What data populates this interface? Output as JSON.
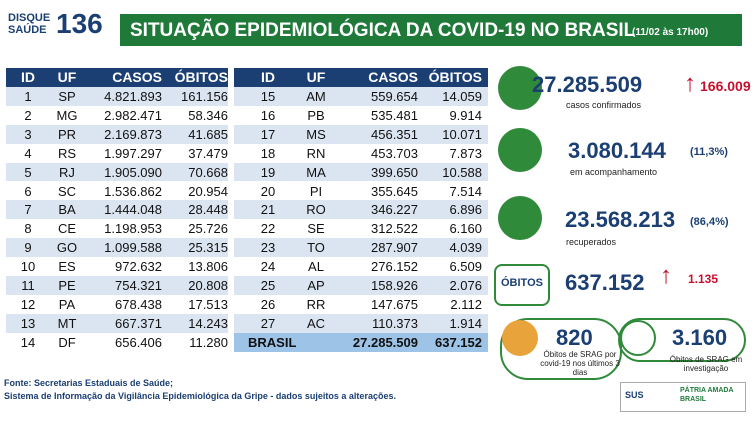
{
  "header": {
    "logo_top": "DISQUE",
    "logo_bottom": "SAÚDE",
    "logo_number": "136",
    "title": "SITUAÇÃO EPIDEMIOLÓGICA DA COVID-19 NO BRASIL",
    "date": "(11/02 às 17h00)"
  },
  "table": {
    "columns": [
      "ID",
      "UF",
      "CASOS",
      "ÓBITOS"
    ],
    "rows": [
      [
        "1",
        "SP",
        "4.821.893",
        "161.156"
      ],
      [
        "2",
        "MG",
        "2.982.471",
        "58.346"
      ],
      [
        "3",
        "PR",
        "2.169.873",
        "41.685"
      ],
      [
        "4",
        "RS",
        "1.997.297",
        "37.479"
      ],
      [
        "5",
        "RJ",
        "1.905.090",
        "70.668"
      ],
      [
        "6",
        "SC",
        "1.536.862",
        "20.954"
      ],
      [
        "7",
        "BA",
        "1.444.048",
        "28.448"
      ],
      [
        "8",
        "CE",
        "1.198.953",
        "25.726"
      ],
      [
        "9",
        "GO",
        "1.099.588",
        "25.315"
      ],
      [
        "10",
        "ES",
        "972.632",
        "13.806"
      ],
      [
        "11",
        "PE",
        "754.321",
        "20.808"
      ],
      [
        "12",
        "PA",
        "678.438",
        "17.513"
      ],
      [
        "13",
        "MT",
        "667.371",
        "14.243"
      ],
      [
        "14",
        "DF",
        "656.406",
        "11.280"
      ],
      [
        "15",
        "AM",
        "559.654",
        "14.059"
      ],
      [
        "16",
        "PB",
        "535.481",
        "9.914"
      ],
      [
        "17",
        "MS",
        "456.351",
        "10.071"
      ],
      [
        "18",
        "RN",
        "453.703",
        "7.873"
      ],
      [
        "19",
        "MA",
        "399.650",
        "10.588"
      ],
      [
        "20",
        "PI",
        "355.645",
        "7.514"
      ],
      [
        "21",
        "RO",
        "346.227",
        "6.896"
      ],
      [
        "22",
        "SE",
        "312.522",
        "6.160"
      ],
      [
        "23",
        "TO",
        "287.907",
        "4.039"
      ],
      [
        "24",
        "AL",
        "276.152",
        "6.509"
      ],
      [
        "25",
        "AP",
        "158.926",
        "2.076"
      ],
      [
        "26",
        "RR",
        "147.675",
        "2.112"
      ],
      [
        "27",
        "AC",
        "110.373",
        "1.914"
      ]
    ],
    "total": [
      "BRASIL",
      "27.285.509",
      "637.152"
    ]
  },
  "stats": {
    "confirmed": {
      "value": "27.285.509",
      "delta": "166.009",
      "label": "casos confirmados"
    },
    "monitoring": {
      "value": "3.080.144",
      "percent": "(11,3%)",
      "label": "em acompanhamento"
    },
    "recovered": {
      "value": "23.568.213",
      "percent": "(86,4%)",
      "label": "recuperados"
    },
    "deaths": {
      "badge": "ÓBITOS",
      "value": "637.152",
      "delta": "1.135"
    },
    "srag_recent": {
      "value": "820",
      "label": "Óbitos de SRAG por covid-19 nos últimos 3 dias"
    },
    "srag_investigation": {
      "value": "3.160",
      "label": "Óbitos de SRAG em investigação"
    }
  },
  "footer": {
    "source": "Fonte: Secretarias Estaduais de Saúde;",
    "note": "Sistema de Informação da Vigilância Epidemiológica da Gripe - dados sujeitos a alterações.",
    "logo_sus": "SUS",
    "logo_gov": "PÁTRIA AMADA BRASIL"
  }
}
